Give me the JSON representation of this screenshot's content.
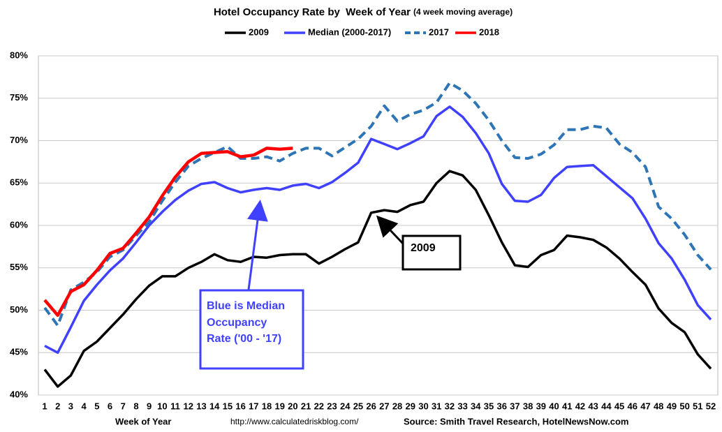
{
  "chart_data": {
    "type": "line",
    "title": "Hotel Occupancy Rate by  Week of Year",
    "subtitle": "(4 week moving average)",
    "x_label": "Week of Year",
    "url": "http://www.calculatedriskblog.com/",
    "source": "Source: Smith Travel Research, HotelNewsNow.com",
    "categories": [
      "1",
      "2",
      "3",
      "4",
      "5",
      "6",
      "7",
      "8",
      "9",
      "10",
      "11",
      "12",
      "13",
      "14",
      "15",
      "16",
      "17",
      "18",
      "19",
      "20",
      "21",
      "22",
      "23",
      "24",
      "25",
      "26",
      "27",
      "28",
      "29",
      "30",
      "31",
      "32",
      "33",
      "34",
      "35",
      "36",
      "37",
      "38",
      "39",
      "40",
      "41",
      "42",
      "43",
      "44",
      "45",
      "46",
      "47",
      "48",
      "49",
      "50",
      "51",
      "52"
    ],
    "ylim": [
      40,
      80
    ],
    "yticks": [
      {
        "value": 40,
        "label": "40%"
      },
      {
        "value": 45,
        "label": "45%"
      },
      {
        "value": 50,
        "label": "50%"
      },
      {
        "value": 55,
        "label": "55%"
      },
      {
        "value": 60,
        "label": "60%"
      },
      {
        "value": 65,
        "label": "65%"
      },
      {
        "value": 70,
        "label": "70%"
      },
      {
        "value": 75,
        "label": "75%"
      },
      {
        "value": 80,
        "label": "80%"
      }
    ],
    "grid": true,
    "legend": "top",
    "series": [
      {
        "name": "2009",
        "color": "#000000",
        "style": "solid",
        "values": [
          43.0,
          41.0,
          42.3,
          45.2,
          46.3,
          47.9,
          49.5,
          51.3,
          52.9,
          54.0,
          54.0,
          55.0,
          55.7,
          56.6,
          55.9,
          55.7,
          56.3,
          56.2,
          56.5,
          56.6,
          56.6,
          55.5,
          56.3,
          57.2,
          58.0,
          61.5,
          61.8,
          61.6,
          62.4,
          62.8,
          65.0,
          66.4,
          65.9,
          64.2,
          61.2,
          58.0,
          55.3,
          55.1,
          56.5,
          57.1,
          58.8,
          58.6,
          58.3,
          57.4,
          56.1,
          54.5,
          53.0,
          50.2,
          48.5,
          47.4,
          44.8,
          43.1
        ]
      },
      {
        "name": "Median (2000-2017)",
        "color": "#4040ff",
        "style": "solid",
        "values": [
          45.8,
          45.0,
          48.0,
          51.1,
          53.0,
          54.7,
          56.1,
          58.0,
          60.0,
          61.6,
          63.0,
          64.1,
          64.9,
          65.1,
          64.4,
          63.9,
          64.2,
          64.4,
          64.2,
          64.7,
          64.9,
          64.4,
          65.1,
          66.2,
          67.4,
          70.2,
          69.6,
          69.0,
          69.7,
          70.5,
          72.9,
          74.0,
          72.8,
          70.9,
          68.5,
          64.9,
          62.9,
          62.8,
          63.6,
          65.6,
          66.9,
          67.0,
          67.1,
          65.8,
          64.5,
          63.2,
          60.8,
          57.9,
          56.1,
          53.6,
          50.6,
          48.9
        ]
      },
      {
        "name": "2017",
        "color": "#2e75b6",
        "style": "dashed",
        "values": [
          50.3,
          48.2,
          52.4,
          53.3,
          54.5,
          56.3,
          57.1,
          58.8,
          60.4,
          62.9,
          65.1,
          67.0,
          67.9,
          68.6,
          69.3,
          67.9,
          67.9,
          68.1,
          67.6,
          68.5,
          69.1,
          69.1,
          68.2,
          69.2,
          70.2,
          71.7,
          74.1,
          72.3,
          73.1,
          73.6,
          74.5,
          76.8,
          75.9,
          74.4,
          72.4,
          70.0,
          68.0,
          67.9,
          68.4,
          69.5,
          71.3,
          71.3,
          71.7,
          71.5,
          69.6,
          68.6,
          66.9,
          62.2,
          60.8,
          58.9,
          56.5,
          54.8
        ]
      },
      {
        "name": "2018",
        "color": "#ff0000",
        "style": "solid",
        "values": [
          51.2,
          49.4,
          52.2,
          53.0,
          54.7,
          56.7,
          57.3,
          59.1,
          61.0,
          63.5,
          65.7,
          67.5,
          68.5,
          68.6,
          68.7,
          68.1,
          68.3,
          69.1,
          69.0,
          69.1,
          null,
          null,
          null,
          null,
          null,
          null,
          null,
          null,
          null,
          null,
          null,
          null,
          null,
          null,
          null,
          null,
          null,
          null,
          null,
          null,
          null,
          null,
          null,
          null,
          null,
          null,
          null,
          null,
          null,
          null,
          null,
          null
        ]
      }
    ],
    "annotations": [
      {
        "text": "2009"
      },
      {
        "lines": [
          "Blue is Median",
          "Occupancy",
          "Rate ('00 - '17)"
        ]
      }
    ]
  }
}
